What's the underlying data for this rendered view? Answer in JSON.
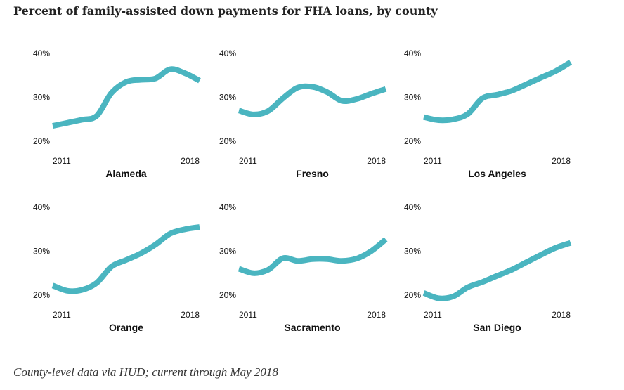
{
  "title": "Percent of family-assisted down payments for FHA loans, by county",
  "source_note": "County-level data via HUD; current through May 2018",
  "chart_data": {
    "type": "line",
    "layout": "small-multiples",
    "line_color": "#4ab5c0",
    "x_start_label": "2011",
    "x_end_label": "2018",
    "y_ticks": [
      "40%",
      "30%",
      "20%"
    ],
    "y_tick_values": [
      40,
      30,
      20
    ],
    "ylim": [
      20,
      40
    ],
    "x": [
      0,
      0.1,
      0.2,
      0.3,
      0.4,
      0.5,
      0.6,
      0.7,
      0.8,
      0.9,
      1
    ],
    "panels": [
      {
        "name": "Alameda",
        "values": [
          23.5,
          24.2,
          24.9,
          25.8,
          31.0,
          33.5,
          34.0,
          34.3,
          36.4,
          35.5,
          33.8
        ]
      },
      {
        "name": "Fresno",
        "values": [
          27.0,
          26.1,
          26.9,
          29.8,
          32.2,
          32.4,
          31.2,
          29.2,
          29.6,
          30.8,
          31.9
        ]
      },
      {
        "name": "Los Angeles",
        "values": [
          25.5,
          24.8,
          25.0,
          26.2,
          29.8,
          30.6,
          31.5,
          33.0,
          34.5,
          36.0,
          38.0
        ]
      },
      {
        "name": "Orange",
        "values": [
          22.2,
          21.0,
          21.2,
          22.8,
          26.5,
          28.0,
          29.5,
          31.5,
          34.0,
          35.0,
          35.5
        ]
      },
      {
        "name": "Sacramento",
        "values": [
          26.0,
          25.0,
          25.8,
          28.4,
          27.8,
          28.2,
          28.2,
          27.8,
          28.3,
          30.0,
          32.7
        ]
      },
      {
        "name": "San Diego",
        "values": [
          20.5,
          19.3,
          19.7,
          21.8,
          23.0,
          24.4,
          25.8,
          27.5,
          29.2,
          30.8,
          31.9
        ]
      }
    ]
  }
}
